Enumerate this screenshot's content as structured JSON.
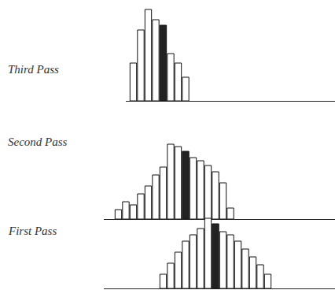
{
  "chart_data": [
    {
      "type": "bar",
      "title": "Third Pass",
      "x": [
        17,
        18,
        19,
        20,
        21,
        22,
        23,
        24
      ],
      "values": [
        48,
        90,
        116,
        103,
        96,
        60,
        48,
        30
      ],
      "colors": [
        "#ffffff",
        "#ffffff",
        "#ffffff",
        "#ffffff",
        "#222222",
        "#ffffff",
        "#ffffff",
        "#ffffff"
      ],
      "xlim": [
        16,
        44
      ],
      "ylim": [
        0,
        128
      ],
      "xticks": [],
      "yticks": [],
      "tick_labels": false,
      "grid": false
    },
    {
      "type": "bar",
      "title": "Second Pass",
      "x": [
        15,
        16,
        17,
        18,
        19,
        20,
        21,
        22,
        23,
        24,
        25,
        26,
        27,
        28,
        29,
        30
      ],
      "values": [
        12,
        22,
        18,
        32,
        42,
        56,
        66,
        95,
        92,
        86,
        78,
        74,
        68,
        60,
        46,
        14
      ],
      "colors": [
        "#ffffff",
        "#ffffff",
        "#ffffff",
        "#ffffff",
        "#ffffff",
        "#ffffff",
        "#ffffff",
        "#ffffff",
        "#ffffff",
        "#222222",
        "#ffffff",
        "#ffffff",
        "#ffffff",
        "#ffffff",
        "#ffffff",
        "#ffffff"
      ],
      "xlim": [
        13,
        44
      ],
      "ylim": [
        0,
        128
      ],
      "xticks": [],
      "yticks": [],
      "tick_labels": false,
      "grid": false
    },
    {
      "type": "bar",
      "title": "First Pass",
      "x": [
        21,
        22,
        23,
        24,
        25,
        26,
        27,
        28,
        29,
        30,
        31,
        32,
        33,
        34,
        35
      ],
      "values": [
        18,
        32,
        46,
        60,
        68,
        76,
        89,
        82,
        72,
        68,
        60,
        50,
        40,
        30,
        18
      ],
      "colors": [
        "#ffffff",
        "#ffffff",
        "#ffffff",
        "#ffffff",
        "#ffffff",
        "#ffffff",
        "#ffffff",
        "#222222",
        "#ffffff",
        "#ffffff",
        "#ffffff",
        "#ffffff",
        "#ffffff",
        "#ffffff",
        "#ffffff"
      ],
      "xlim": [
        13,
        44
      ],
      "ylim": [
        0,
        128
      ],
      "xticks": [],
      "yticks": [],
      "tick_labels": false,
      "grid": false
    }
  ]
}
